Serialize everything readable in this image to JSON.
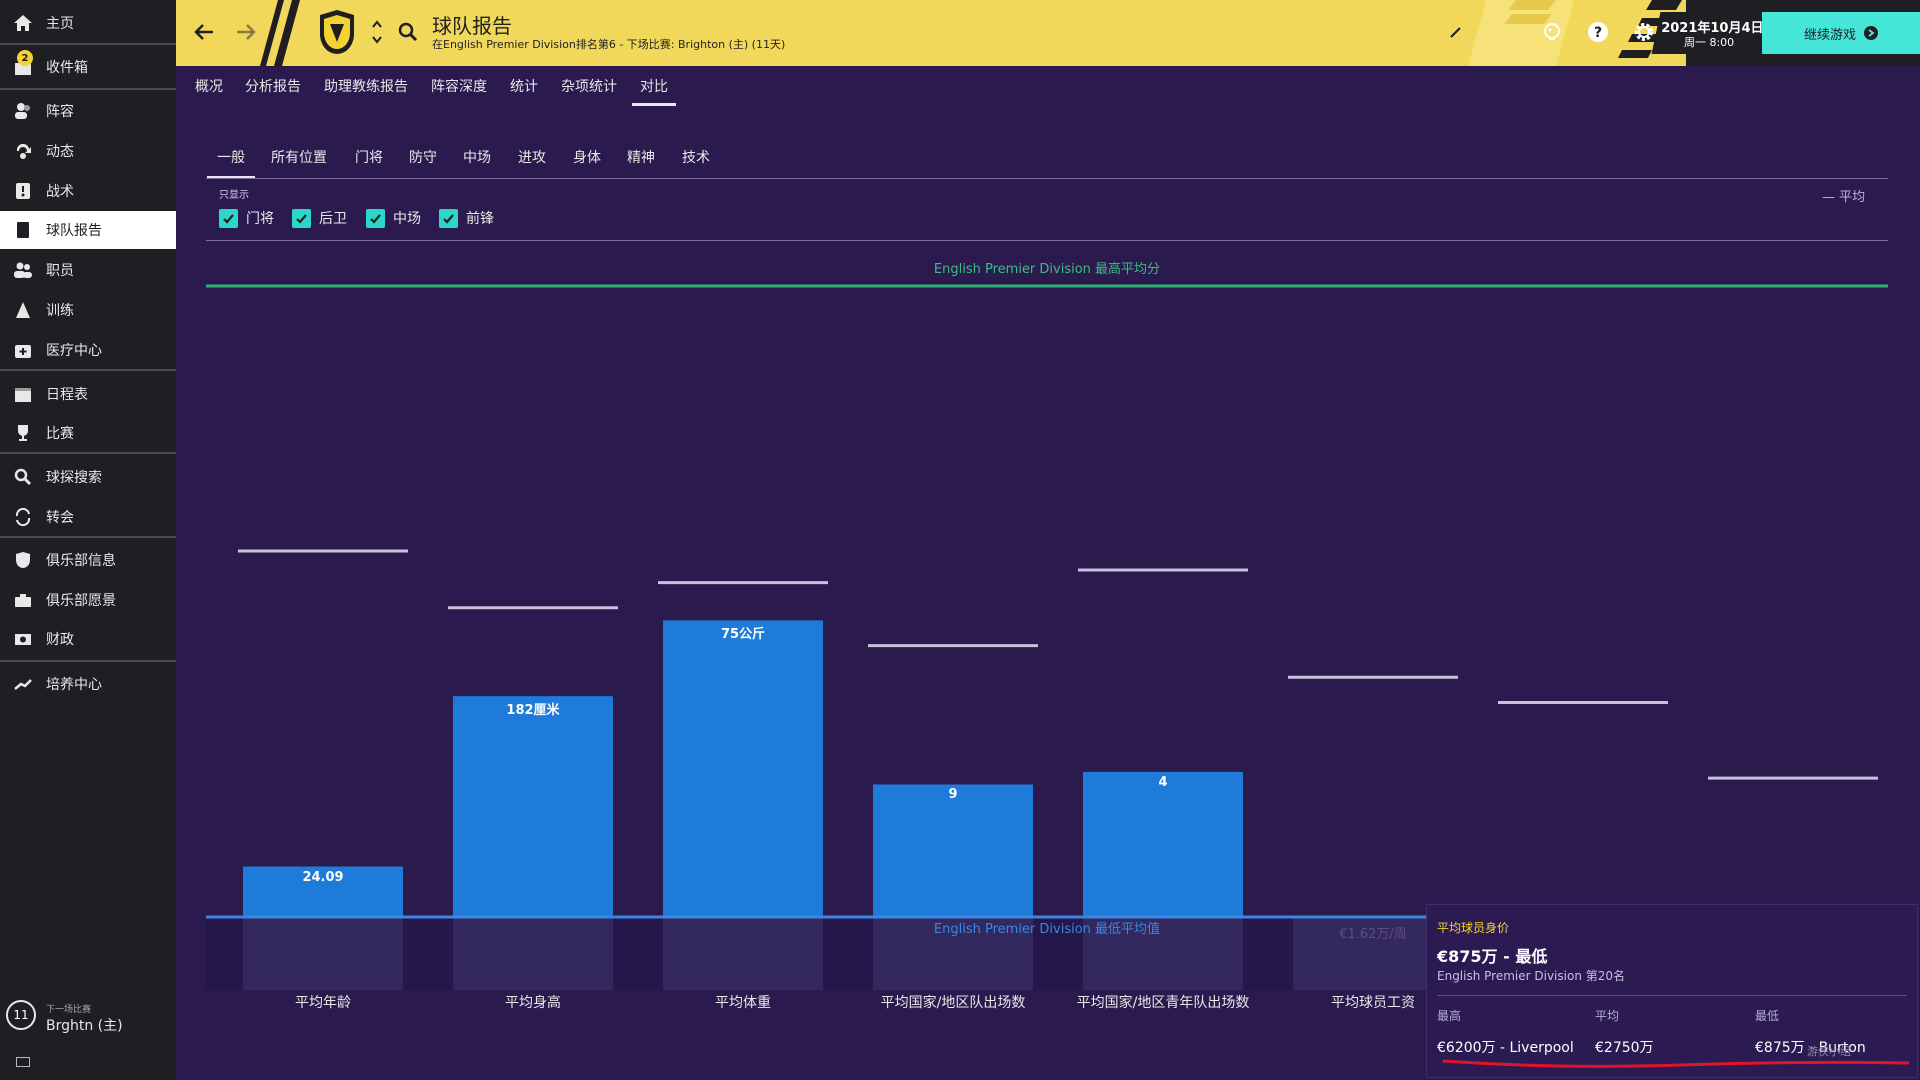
{
  "sidebar": {
    "items": [
      {
        "label": "主页",
        "icon": "home-icon"
      },
      {
        "label": "收件箱",
        "icon": "inbox-icon",
        "badge": "2"
      },
      {
        "label": "阵容",
        "icon": "squad-icon"
      },
      {
        "label": "动态",
        "icon": "dynamics-icon"
      },
      {
        "label": "战术",
        "icon": "tactics-icon"
      },
      {
        "label": "球队报告",
        "icon": "report-icon"
      },
      {
        "label": "职员",
        "icon": "staff-icon"
      },
      {
        "label": "训练",
        "icon": "training-icon"
      },
      {
        "label": "医疗中心",
        "icon": "medical-icon"
      },
      {
        "label": "日程表",
        "icon": "calendar-icon"
      },
      {
        "label": "比赛",
        "icon": "trophy-icon"
      },
      {
        "label": "球探搜索",
        "icon": "search-icon"
      },
      {
        "label": "转会",
        "icon": "transfer-icon"
      },
      {
        "label": "俱乐部信息",
        "icon": "shield-icon"
      },
      {
        "label": "俱乐部愿景",
        "icon": "vision-icon"
      },
      {
        "label": "财政",
        "icon": "finance-icon"
      },
      {
        "label": "培养中心",
        "icon": "development-icon"
      }
    ],
    "next_match": {
      "label": "下一场比赛",
      "opponent": "Brghtn (主)",
      "days": "11"
    }
  },
  "header": {
    "title": "球队报告",
    "subtitle": "在English Premier Division排名第6 - 下场比赛: Brighton (主) (11天)",
    "date": "2021年10月4日",
    "time": "周一 8:00",
    "continue": "继续游戏"
  },
  "tabs": [
    "概况",
    "分析报告",
    "助理教练报告",
    "阵容深度",
    "统计",
    "杂项统计",
    "对比"
  ],
  "subtabs": [
    "一般",
    "所有位置",
    "门将",
    "防守",
    "中场",
    "进攻",
    "身体",
    "精神",
    "技术"
  ],
  "filter": {
    "label": "只显示",
    "options": [
      "门将",
      "后卫",
      "中场",
      "前锋"
    ],
    "legend": "— 平均"
  },
  "chart_data": {
    "type": "bar",
    "categories": [
      "平均年龄",
      "平均身高",
      "平均体重",
      "平均国家/地区队出场数",
      "平均国家/地区青年队出场数",
      "平均球员工资",
      "平均球员身价",
      ""
    ],
    "bar_labels": [
      "24.09",
      "182厘米",
      "75公斤",
      "9",
      "4",
      "€1.62万/周",
      "",
      ""
    ],
    "values_normalized": [
      0.08,
      0.35,
      0.47,
      0.21,
      0.23,
      0.0,
      0.0,
      0.0
    ],
    "average_normalized": [
      0.58,
      0.49,
      0.53,
      0.43,
      0.55,
      0.38,
      0.34,
      0.22
    ],
    "max_label": "English Premier Division 最高平均分",
    "min_label": "English Premier Division 最低平均值",
    "colors": {
      "bar": "#1e7bd9",
      "max_line": "#2fb174",
      "min_line": "#3a86e0",
      "average": "#c9c0dc"
    }
  },
  "tooltip": {
    "title": "平均球员身价",
    "value": "€875万 - 最低",
    "rank": "English Premier Division 第20名",
    "headers": [
      "最高",
      "平均",
      "最低"
    ],
    "values": [
      "€6200万 - Liverpool",
      "€2750万",
      "€875万 - Burton"
    ],
    "watermark": "游侠小组"
  }
}
